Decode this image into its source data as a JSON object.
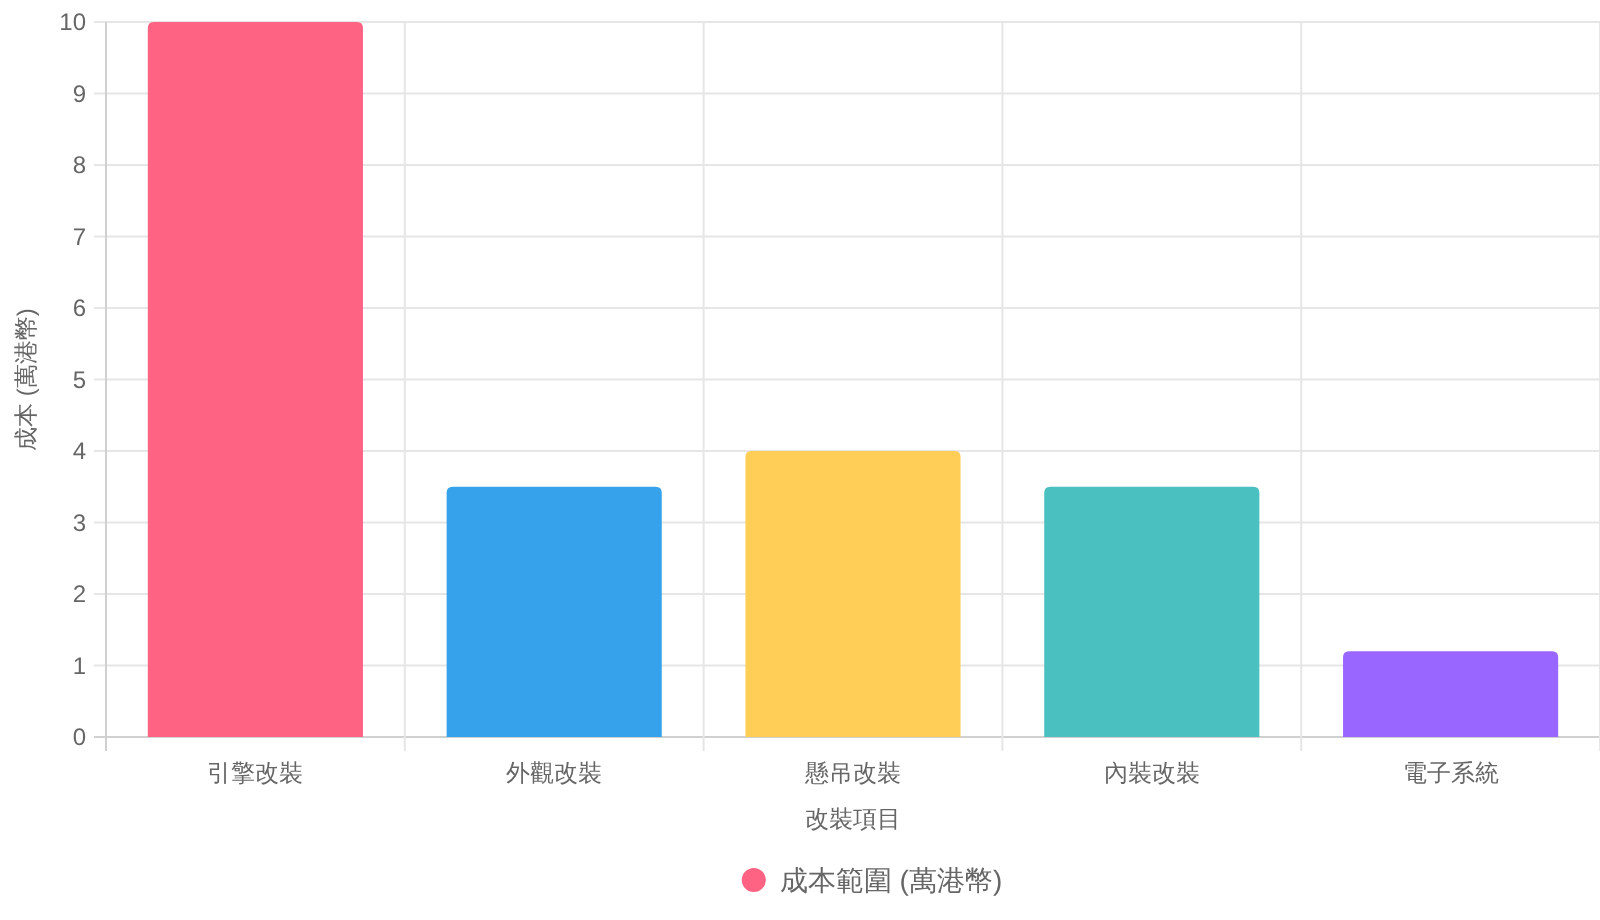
{
  "chart_data": {
    "type": "bar",
    "categories": [
      "引擎改裝",
      "外觀改裝",
      "懸吊改裝",
      "內裝改裝",
      "電子系統"
    ],
    "series": [
      {
        "name": "成本範圍 (萬港幣)",
        "colors": [
          "#ff6384",
          "#36a2eb",
          "#ffce56",
          "#4bc0c0",
          "#9966ff"
        ],
        "values": [
          10,
          3.5,
          4,
          3.5,
          1.2
        ]
      }
    ],
    "xlabel": "改裝項目",
    "ylabel": "成本 (萬港幣)",
    "ylim": [
      0,
      10
    ],
    "yticks": [
      0,
      1,
      2,
      3,
      4,
      5,
      6,
      7,
      8,
      9,
      10
    ],
    "grid": true,
    "legend": "bottom"
  }
}
